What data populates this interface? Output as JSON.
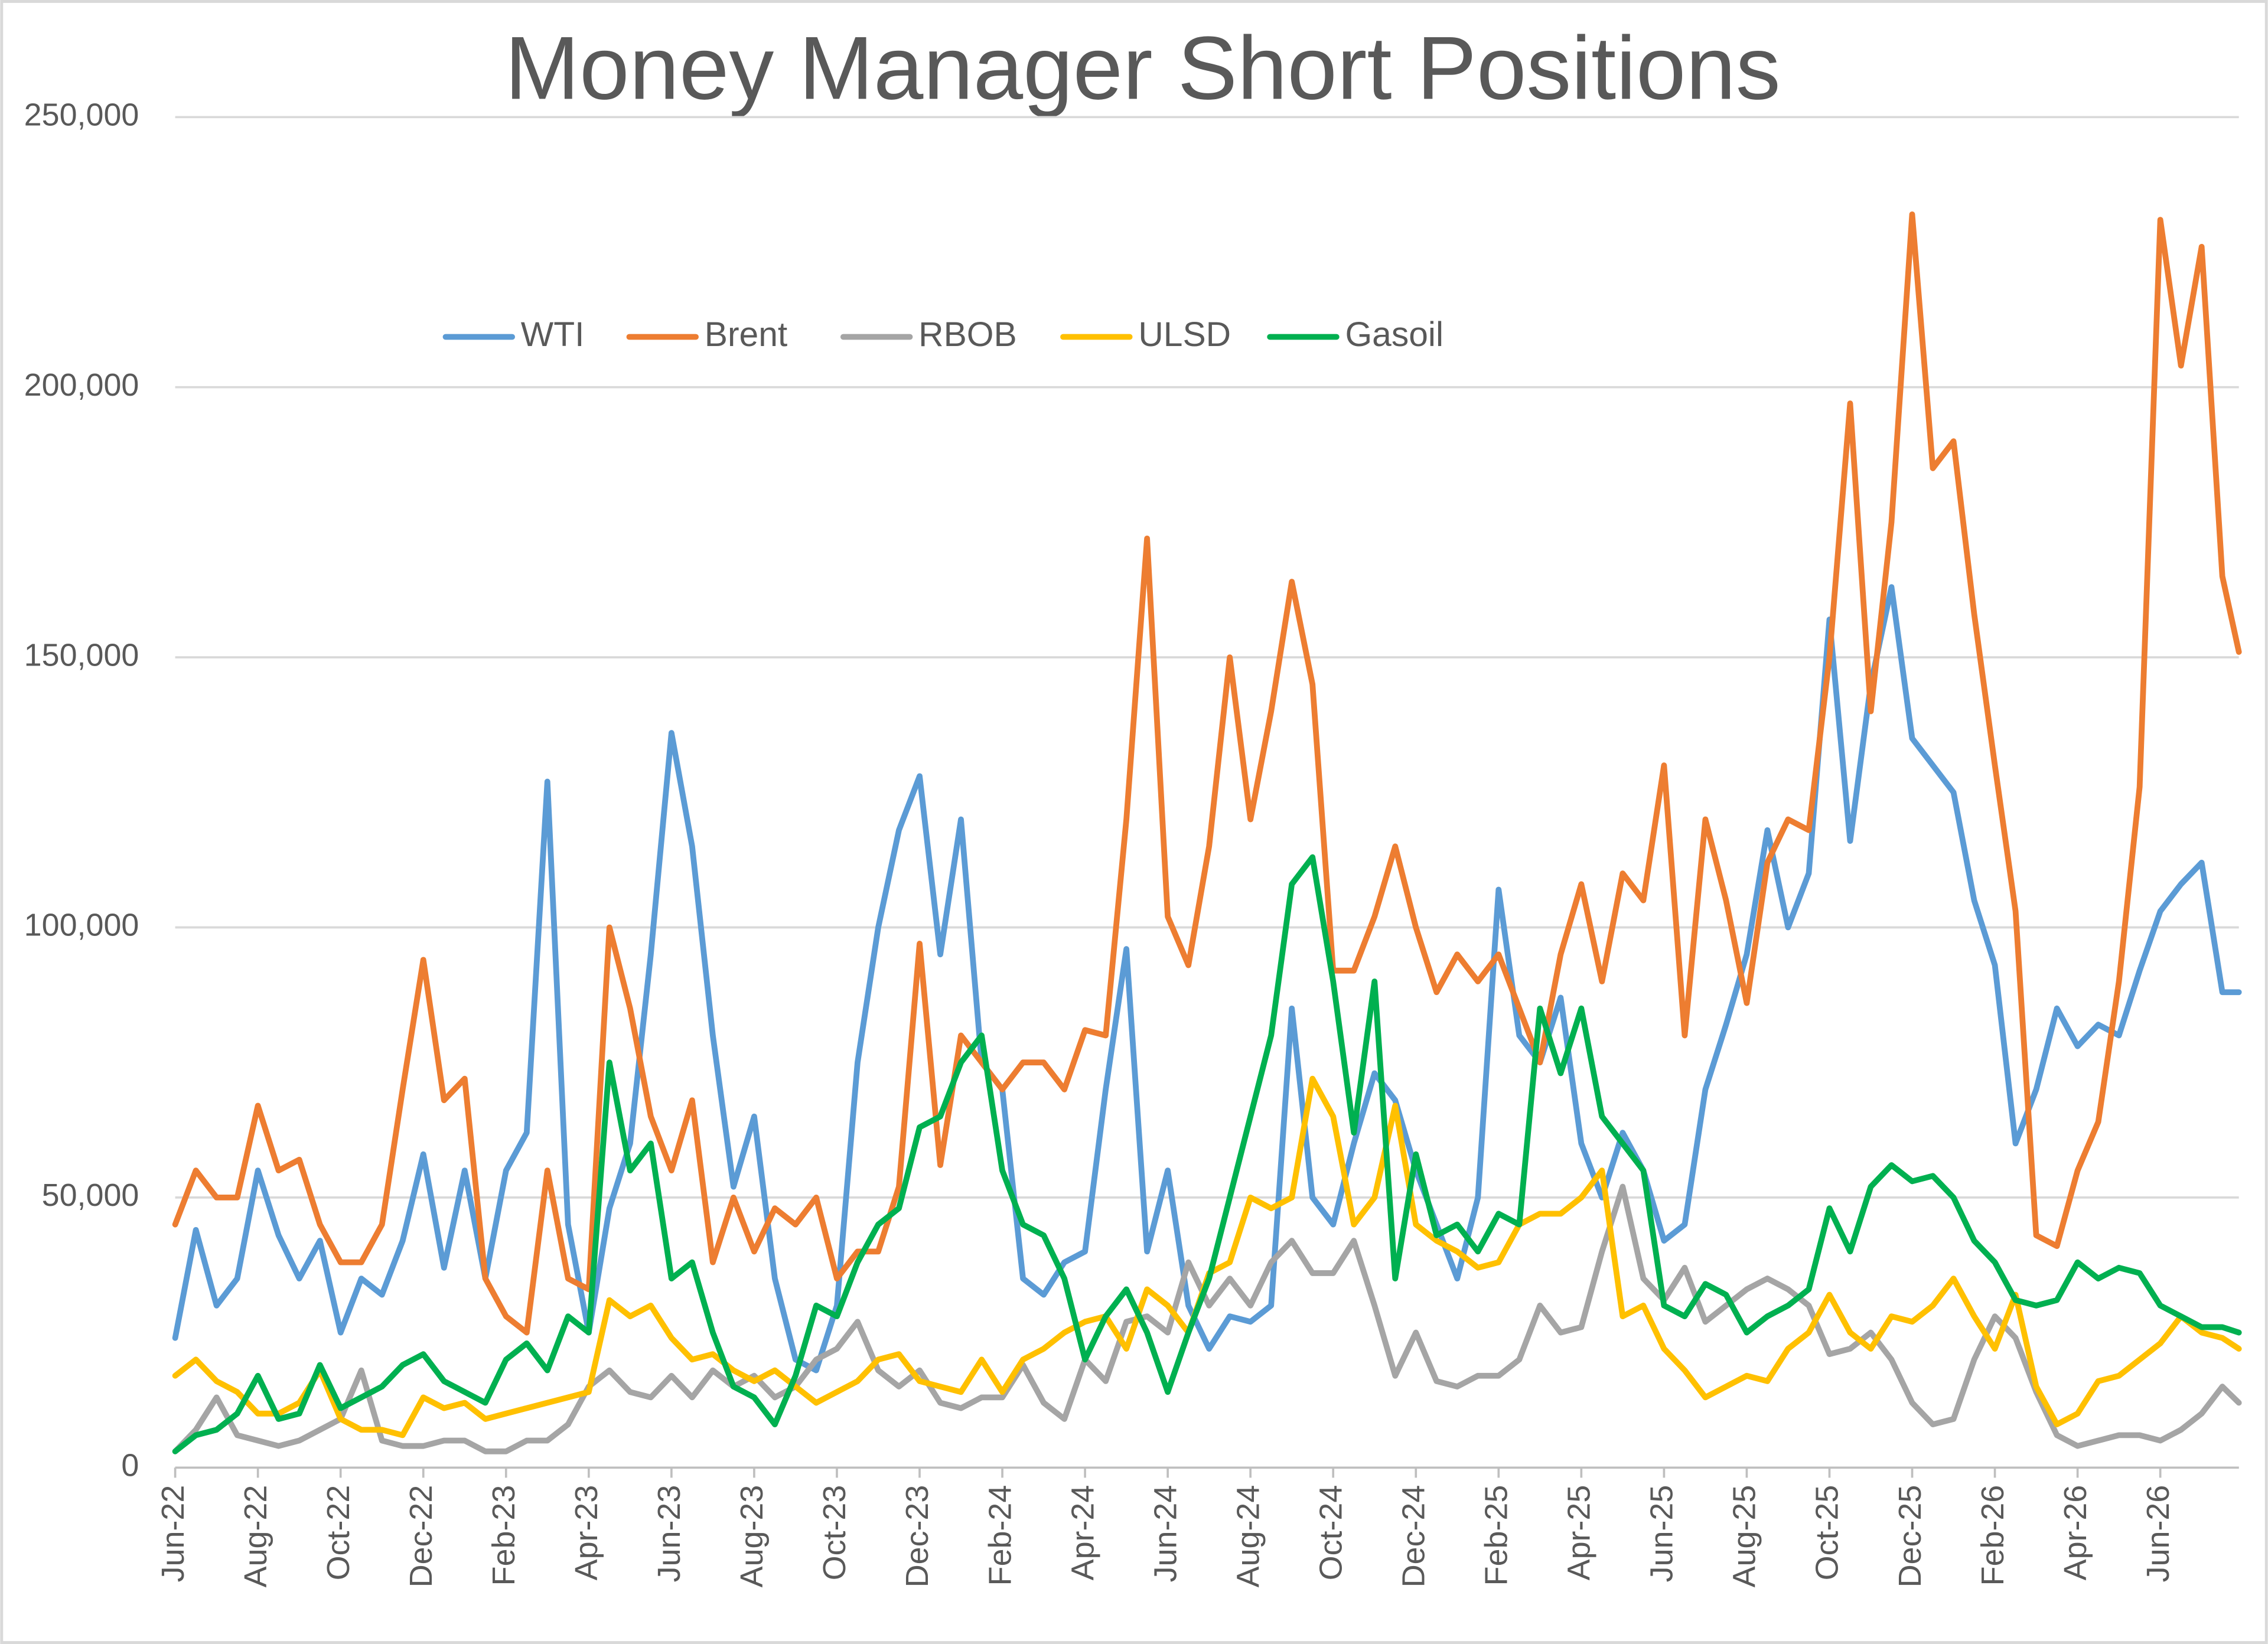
{
  "chart_data": {
    "type": "line",
    "title": "Money Manager Short Positions",
    "x": [
      0,
      0.5,
      1,
      1.5,
      2,
      2.5,
      3,
      3.5,
      4,
      4.5,
      5,
      5.5,
      6,
      6.5,
      7,
      7.5,
      8,
      8.5,
      9,
      9.5,
      10,
      10.5,
      11,
      11.5,
      12,
      12.5,
      13,
      13.5,
      14,
      14.5,
      15,
      15.5,
      16,
      16.5,
      17,
      17.5,
      18,
      18.5,
      19,
      19.5,
      20,
      20.5,
      21,
      21.5,
      22,
      22.5,
      23,
      23.5,
      24,
      24.5,
      25,
      25.5,
      26,
      26.5,
      27,
      27.5,
      28,
      28.5,
      29,
      29.5,
      30,
      30.5,
      31,
      31.5,
      32,
      32.5,
      33,
      33.5,
      34,
      34.5,
      35,
      35.5,
      36,
      36.5,
      37,
      37.5,
      38,
      38.5,
      39,
      39.5,
      40,
      40.5,
      41,
      41.5,
      42,
      42.5,
      43,
      43.5,
      44,
      44.5,
      45,
      45.5,
      46,
      46.5,
      47,
      47.5,
      48,
      48.5,
      49,
      49.5,
      49.9
    ],
    "xlim": [
      0,
      49.9
    ],
    "xticks": [
      {
        "value": 0,
        "label": "Jun-22"
      },
      {
        "value": 2,
        "label": "Aug-22"
      },
      {
        "value": 4,
        "label": "Oct-22"
      },
      {
        "value": 6,
        "label": "Dec-22"
      },
      {
        "value": 8,
        "label": "Feb-23"
      },
      {
        "value": 10,
        "label": "Apr-23"
      },
      {
        "value": 12,
        "label": "Jun-23"
      },
      {
        "value": 14,
        "label": "Aug-23"
      },
      {
        "value": 16,
        "label": "Oct-23"
      },
      {
        "value": 18,
        "label": "Dec-23"
      },
      {
        "value": 20,
        "label": "Feb-24"
      },
      {
        "value": 22,
        "label": "Apr-24"
      },
      {
        "value": 24,
        "label": "Jun-24"
      },
      {
        "value": 26,
        "label": "Aug-24"
      },
      {
        "value": 28,
        "label": "Oct-24"
      },
      {
        "value": 30,
        "label": "Dec-24"
      },
      {
        "value": 32,
        "label": "Feb-25"
      },
      {
        "value": 34,
        "label": "Apr-25"
      },
      {
        "value": 36,
        "label": "Jun-25"
      },
      {
        "value": 38,
        "label": "Aug-25"
      },
      {
        "value": 40,
        "label": "Oct-25"
      },
      {
        "value": 42,
        "label": "Dec-25"
      },
      {
        "value": 44,
        "label": "Feb-26"
      },
      {
        "value": 46,
        "label": "Apr-26"
      },
      {
        "value": 48,
        "label": "Jun-26"
      }
    ],
    "ylim": [
      0,
      250000
    ],
    "yticks": [
      0,
      {
        "value": 50000,
        "label": "50,000"
      },
      {
        "value": 100000,
        "label": "100,000"
      },
      {
        "value": 150000,
        "label": "150,000"
      },
      {
        "value": 200000,
        "label": "200,000"
      },
      {
        "value": 250000,
        "label": "250,000"
      }
    ],
    "grid": true,
    "series": [
      {
        "name": "WTI",
        "color": "#5b9bd5",
        "values": [
          24000,
          44000,
          30000,
          35000,
          55000,
          43000,
          35000,
          42000,
          25000,
          35000,
          32000,
          42000,
          58000,
          37000,
          55000,
          35000,
          55000,
          62000,
          127000,
          45000,
          25000,
          48000,
          60000,
          95000,
          136000,
          115000,
          80000,
          52000,
          65000,
          35000,
          20000,
          18000,
          30000,
          75000,
          100000,
          118000,
          128000,
          95000,
          120000,
          75000,
          70000,
          35000,
          32000,
          38000,
          40000,
          70000,
          96000,
          40000,
          55000,
          30000,
          22000,
          28000,
          27000,
          30000,
          85000,
          50000,
          45000,
          60000,
          73000,
          68000,
          55000,
          45000,
          35000,
          50000,
          107000,
          80000,
          75000,
          87000,
          60000,
          50000,
          62000,
          55000,
          42000,
          45000,
          70000,
          82000,
          95000,
          118000,
          100000,
          110000,
          157000,
          116000,
          145000,
          163000,
          135000,
          130000,
          125000,
          105000,
          93000,
          60000,
          70000,
          85000,
          78000,
          82000,
          80000,
          92000,
          103000,
          108000,
          112000,
          88000,
          88000
        ]
      },
      {
        "name": "Brent",
        "color": "#ed7d31",
        "values": [
          45000,
          55000,
          50000,
          50000,
          67000,
          55000,
          57000,
          45000,
          38000,
          38000,
          45000,
          70000,
          94000,
          68000,
          72000,
          35000,
          28000,
          25000,
          55000,
          35000,
          33000,
          100000,
          85000,
          65000,
          55000,
          68000,
          38000,
          50000,
          40000,
          48000,
          45000,
          50000,
          35000,
          40000,
          40000,
          52000,
          97000,
          56000,
          80000,
          75000,
          70000,
          75000,
          75000,
          70000,
          81000,
          80000,
          120000,
          172000,
          102000,
          93000,
          115000,
          150000,
          120000,
          140000,
          164000,
          145000,
          92000,
          92000,
          102000,
          115000,
          100000,
          88000,
          95000,
          90000,
          95000,
          85000,
          75000,
          95000,
          108000,
          90000,
          110000,
          105000,
          130000,
          80000,
          120000,
          105000,
          86000,
          112000,
          120000,
          118000,
          150000,
          197000,
          140000,
          175000,
          232000,
          185000,
          190000,
          158000,
          130000,
          103000,
          43000,
          41000,
          55000,
          64000,
          90000,
          126000,
          231000,
          204000,
          226000,
          165000,
          151000
        ]
      },
      {
        "name": "RBOB",
        "color": "#a5a5a5",
        "values": [
          3000,
          7000,
          13000,
          6000,
          5000,
          4000,
          5000,
          7000,
          9000,
          18000,
          5000,
          4000,
          4000,
          5000,
          5000,
          3000,
          3000,
          5000,
          5000,
          8000,
          15000,
          18000,
          14000,
          13000,
          17000,
          13000,
          18000,
          15000,
          17000,
          13000,
          15000,
          20000,
          22000,
          27000,
          18000,
          15000,
          18000,
          12000,
          11000,
          13000,
          13000,
          19000,
          12000,
          9000,
          20000,
          16000,
          27000,
          28000,
          25000,
          38000,
          30000,
          35000,
          30000,
          38000,
          42000,
          36000,
          36000,
          42000,
          30000,
          17000,
          25000,
          16000,
          15000,
          17000,
          17000,
          20000,
          30000,
          25000,
          26000,
          40000,
          52000,
          35000,
          31000,
          37000,
          27000,
          30000,
          33000,
          35000,
          33000,
          30000,
          21000,
          22000,
          25000,
          20000,
          12000,
          8000,
          9000,
          20000,
          28000,
          24000,
          14000,
          6000,
          4000,
          5000,
          6000,
          6000,
          5000,
          7000,
          10000,
          15000,
          12000
        ]
      },
      {
        "name": "ULSD",
        "color": "#ffc000",
        "values": [
          17000,
          20000,
          16000,
          14000,
          10000,
          10000,
          12000,
          18000,
          9000,
          7000,
          7000,
          6000,
          13000,
          11000,
          12000,
          9000,
          10000,
          11000,
          12000,
          13000,
          14000,
          31000,
          28000,
          30000,
          24000,
          20000,
          21000,
          18000,
          16000,
          18000,
          15000,
          12000,
          14000,
          16000,
          20000,
          21000,
          16000,
          15000,
          14000,
          20000,
          14000,
          20000,
          22000,
          25000,
          27000,
          28000,
          22000,
          33000,
          30000,
          25000,
          36000,
          38000,
          50000,
          48000,
          50000,
          72000,
          65000,
          45000,
          50000,
          67000,
          45000,
          42000,
          40000,
          37000,
          38000,
          45000,
          47000,
          47000,
          50000,
          55000,
          28000,
          30000,
          22000,
          18000,
          13000,
          15000,
          17000,
          16000,
          22000,
          25000,
          32000,
          25000,
          22000,
          28000,
          27000,
          30000,
          35000,
          28000,
          22000,
          32000,
          15000,
          8000,
          10000,
          16000,
          17000,
          20000,
          23000,
          28000,
          25000,
          24000,
          22000
        ]
      },
      {
        "name": "Gasoil",
        "color": "#00b050",
        "values": [
          3000,
          6000,
          7000,
          10000,
          17000,
          9000,
          10000,
          19000,
          11000,
          13000,
          15000,
          19000,
          21000,
          16000,
          14000,
          12000,
          20000,
          23000,
          18000,
          28000,
          25000,
          75000,
          55000,
          60000,
          35000,
          38000,
          25000,
          15000,
          13000,
          8000,
          17000,
          30000,
          28000,
          38000,
          45000,
          48000,
          63000,
          65000,
          75000,
          80000,
          55000,
          45000,
          43000,
          35000,
          20000,
          28000,
          33000,
          25000,
          14000,
          25000,
          35000,
          50000,
          65000,
          80000,
          108000,
          113000,
          90000,
          62000,
          90000,
          35000,
          58000,
          43000,
          45000,
          40000,
          47000,
          45000,
          85000,
          73000,
          85000,
          65000,
          60000,
          55000,
          30000,
          28000,
          34000,
          32000,
          25000,
          28000,
          30000,
          33000,
          48000,
          40000,
          52000,
          56000,
          53000,
          54000,
          50000,
          42000,
          38000,
          31000,
          30000,
          31000,
          38000,
          35000,
          37000,
          36000,
          30000,
          28000,
          26000,
          26000,
          25000
        ]
      }
    ]
  }
}
